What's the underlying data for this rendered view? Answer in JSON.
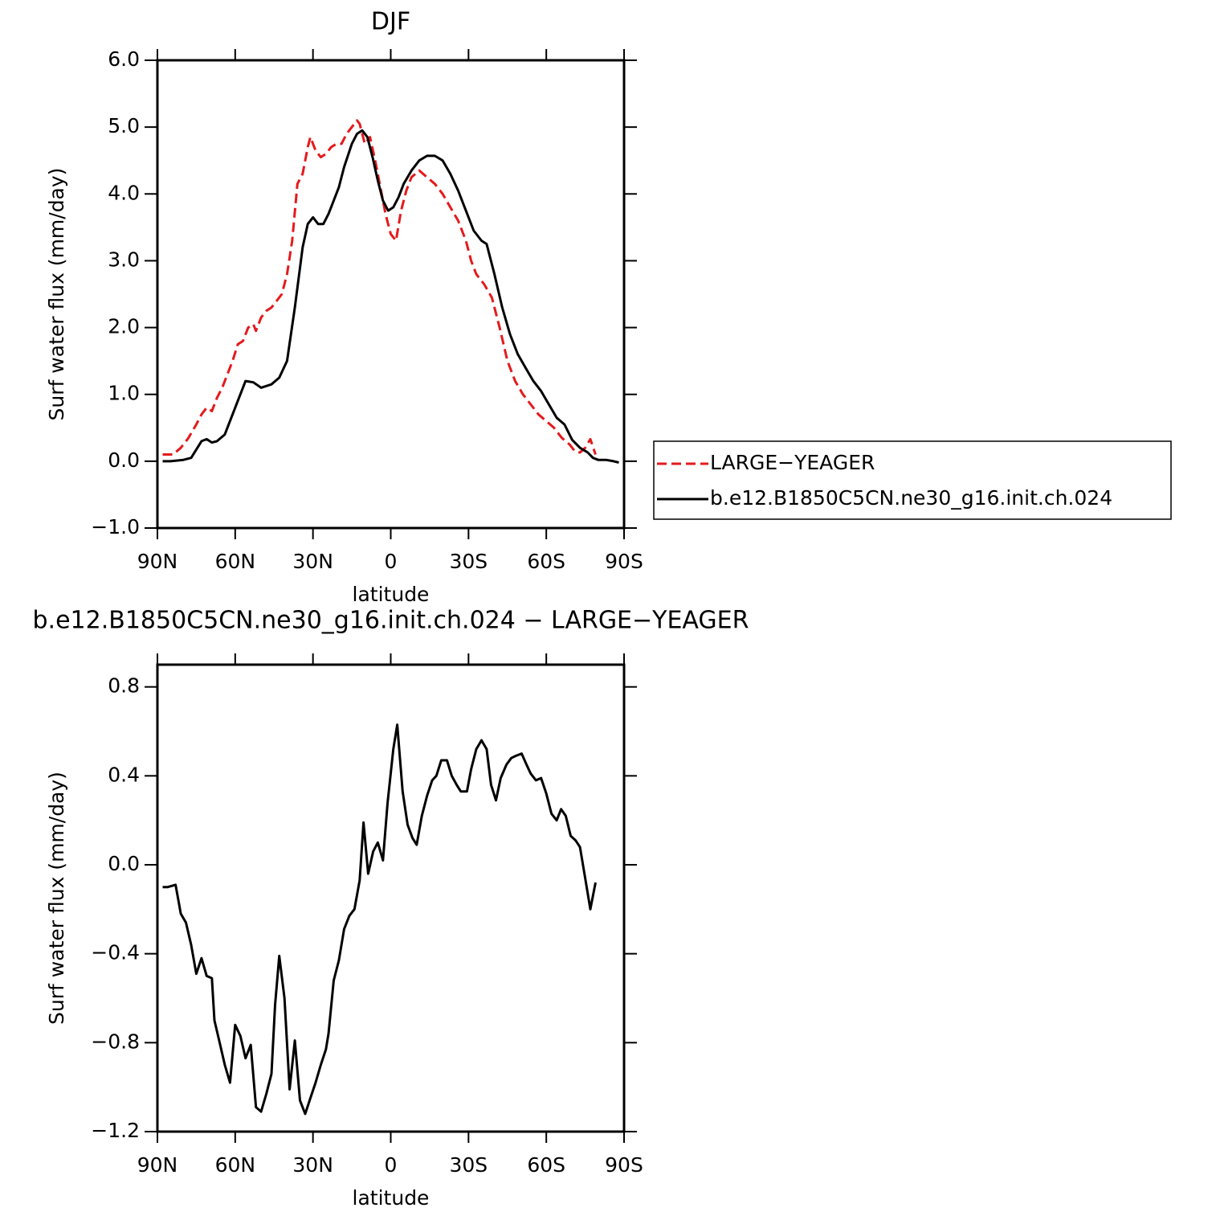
{
  "chart_data": [
    {
      "type": "line",
      "title": "DJF",
      "xlabel": "latitude",
      "ylabel": "Surf water flux (mm/day)",
      "xlim": [
        90,
        -90
      ],
      "ylim": [
        -1.0,
        6.0
      ],
      "xticks": [
        {
          "value": 90,
          "label": "90N"
        },
        {
          "value": 60,
          "label": "60N"
        },
        {
          "value": 30,
          "label": "30N"
        },
        0,
        {
          "value": -30,
          "label": "30S"
        },
        {
          "value": -60,
          "label": "60S"
        },
        {
          "value": -90,
          "label": "90S"
        }
      ],
      "yticks": [
        {
          "value": -1.0,
          "label": "−1.0"
        },
        {
          "value": 0.0,
          "label": "0.0"
        },
        {
          "value": 1.0,
          "label": "1.0"
        },
        {
          "value": 2.0,
          "label": "2.0"
        },
        {
          "value": 3.0,
          "label": "3.0"
        },
        {
          "value": 4.0,
          "label": "4.0"
        },
        {
          "value": 5.0,
          "label": "5.0"
        },
        {
          "value": 6.0,
          "label": "6.0"
        }
      ],
      "legend": "right",
      "series": [
        {
          "name": "LARGE−YEAGER",
          "color": "#e41a1c",
          "linestyle": "dashed",
          "x": [
            88,
            84,
            81,
            78,
            75,
            73,
            71,
            69,
            67,
            65,
            63,
            61,
            59,
            57,
            55,
            53,
            52,
            50,
            48,
            46,
            44,
            42,
            40,
            38,
            36,
            34,
            32,
            31,
            29,
            27,
            25,
            23,
            21,
            19,
            17,
            15,
            13,
            12,
            10,
            8,
            6,
            4,
            2,
            0,
            -2,
            -4,
            -6,
            -8,
            -11,
            -14,
            -17,
            -20,
            -23,
            -26,
            -29,
            -31,
            -33,
            -36,
            -39,
            -42,
            -45,
            -48,
            -51,
            -54,
            -57,
            -60,
            -63,
            -66,
            -69,
            -71,
            -73,
            -75,
            -77,
            -79
          ],
          "values": [
            0.1,
            0.1,
            0.2,
            0.35,
            0.55,
            0.7,
            0.8,
            0.75,
            0.95,
            1.1,
            1.3,
            1.5,
            1.75,
            1.8,
            2.0,
            2.05,
            1.95,
            2.15,
            2.25,
            2.3,
            2.4,
            2.5,
            2.8,
            3.3,
            4.15,
            4.3,
            4.7,
            4.85,
            4.65,
            4.55,
            4.6,
            4.7,
            4.75,
            4.75,
            4.9,
            5.0,
            5.1,
            5.05,
            4.75,
            4.85,
            4.5,
            4.1,
            3.7,
            3.4,
            3.3,
            3.75,
            4.05,
            4.25,
            4.35,
            4.25,
            4.15,
            4.0,
            3.8,
            3.6,
            3.3,
            3.0,
            2.8,
            2.65,
            2.45,
            2.0,
            1.5,
            1.2,
            1.0,
            0.85,
            0.7,
            0.6,
            0.5,
            0.35,
            0.25,
            0.15,
            0.13,
            0.2,
            0.33,
            0.1
          ]
        },
        {
          "name": "b.e12.B1850C5CN.ne30_g16.init.ch.024",
          "color": "#000000",
          "linestyle": "solid",
          "x": [
            88,
            85,
            80,
            77,
            73,
            71,
            69,
            67,
            64,
            60,
            56,
            53,
            50,
            46,
            43,
            40,
            37,
            34,
            32,
            30,
            28,
            26,
            24,
            22,
            20,
            18,
            15,
            13,
            11,
            9,
            7,
            5,
            3,
            1,
            -1,
            -3,
            -5,
            -8,
            -11,
            -14,
            -17,
            -20,
            -23,
            -26,
            -29,
            -32,
            -35,
            -37,
            -40,
            -43,
            -46,
            -49,
            -52,
            -55,
            -58,
            -61,
            -64,
            -67,
            -70,
            -73,
            -76,
            -78,
            -80,
            -83,
            -86,
            -88
          ],
          "values": [
            0.0,
            0.0,
            0.02,
            0.05,
            0.3,
            0.33,
            0.28,
            0.3,
            0.4,
            0.8,
            1.2,
            1.18,
            1.1,
            1.15,
            1.25,
            1.5,
            2.3,
            3.2,
            3.55,
            3.65,
            3.55,
            3.55,
            3.7,
            3.9,
            4.1,
            4.4,
            4.75,
            4.9,
            4.95,
            4.85,
            4.55,
            4.2,
            3.9,
            3.75,
            3.8,
            3.95,
            4.15,
            4.35,
            4.5,
            4.57,
            4.57,
            4.5,
            4.3,
            4.05,
            3.75,
            3.45,
            3.3,
            3.25,
            2.8,
            2.3,
            1.9,
            1.6,
            1.4,
            1.2,
            1.05,
            0.85,
            0.65,
            0.55,
            0.32,
            0.2,
            0.13,
            0.05,
            0.02,
            0.02,
            0.0,
            -0.02
          ]
        }
      ]
    },
    {
      "type": "line",
      "title": "b.e12.B1850C5CN.ne30_g16.init.ch.024 − LARGE−YEAGER",
      "xlabel": "latitude",
      "ylabel": "Surf water flux (mm/day)",
      "xlim": [
        90,
        -90
      ],
      "ylim": [
        -1.2,
        0.9
      ],
      "xticks": [
        {
          "value": 90,
          "label": "90N"
        },
        {
          "value": 60,
          "label": "60N"
        },
        {
          "value": 30,
          "label": "30N"
        },
        0,
        {
          "value": -30,
          "label": "30S"
        },
        {
          "value": -60,
          "label": "60S"
        },
        {
          "value": -90,
          "label": "90S"
        }
      ],
      "yticks": [
        {
          "value": -1.2,
          "label": "−1.2"
        },
        {
          "value": -0.8,
          "label": "−0.8"
        },
        {
          "value": -0.4,
          "label": "−0.4"
        },
        {
          "value": 0.0,
          "label": "0.0"
        },
        0.4,
        0.8
      ],
      "series": [
        {
          "color": "#000000",
          "linestyle": "solid",
          "x": [
            88,
            86,
            83,
            81,
            79,
            77,
            75,
            73,
            71,
            69,
            68,
            66,
            64,
            62,
            60,
            58,
            56,
            54,
            52,
            50,
            48,
            46,
            44.6,
            43,
            41,
            39,
            37,
            35,
            33,
            31,
            29,
            27,
            25,
            24,
            22,
            20,
            18,
            16,
            14,
            12,
            10.5,
            8.7,
            6.8,
            5,
            3,
            1.2,
            -1,
            -2.5,
            -4.6,
            -6.5,
            -8.4,
            -10,
            -12,
            -14,
            -16,
            -17.6,
            -19.5,
            -21.7,
            -23.5,
            -25.4,
            -27,
            -29.4,
            -31,
            -33,
            -35,
            -37,
            -38.7,
            -40.6,
            -42.4,
            -44.6,
            -46.5,
            -48.3,
            -50.5,
            -52.4,
            -54,
            -56,
            -58,
            -60,
            -62,
            -64,
            -65.7,
            -67.5,
            -69.4,
            -71.3,
            -73,
            -75,
            -77,
            -79
          ],
          "values": [
            -0.1,
            -0.1,
            -0.09,
            -0.22,
            -0.26,
            -0.36,
            -0.49,
            -0.42,
            -0.5,
            -0.51,
            -0.7,
            -0.8,
            -0.9,
            -0.98,
            -0.72,
            -0.77,
            -0.87,
            -0.81,
            -1.09,
            -1.11,
            -1.03,
            -0.94,
            -0.63,
            -0.41,
            -0.6,
            -1.01,
            -0.79,
            -1.06,
            -1.12,
            -1.05,
            -0.98,
            -0.9,
            -0.83,
            -0.76,
            -0.52,
            -0.43,
            -0.29,
            -0.23,
            -0.2,
            -0.07,
            0.19,
            -0.04,
            0.06,
            0.1,
            0.02,
            0.28,
            0.52,
            0.63,
            0.33,
            0.18,
            0.12,
            0.09,
            0.22,
            0.31,
            0.38,
            0.4,
            0.47,
            0.47,
            0.4,
            0.36,
            0.33,
            0.33,
            0.43,
            0.52,
            0.56,
            0.52,
            0.36,
            0.29,
            0.39,
            0.45,
            0.48,
            0.49,
            0.5,
            0.45,
            0.41,
            0.38,
            0.39,
            0.32,
            0.23,
            0.2,
            0.25,
            0.22,
            0.13,
            0.11,
            0.08,
            -0.06,
            -0.2,
            -0.08
          ]
        }
      ]
    }
  ]
}
